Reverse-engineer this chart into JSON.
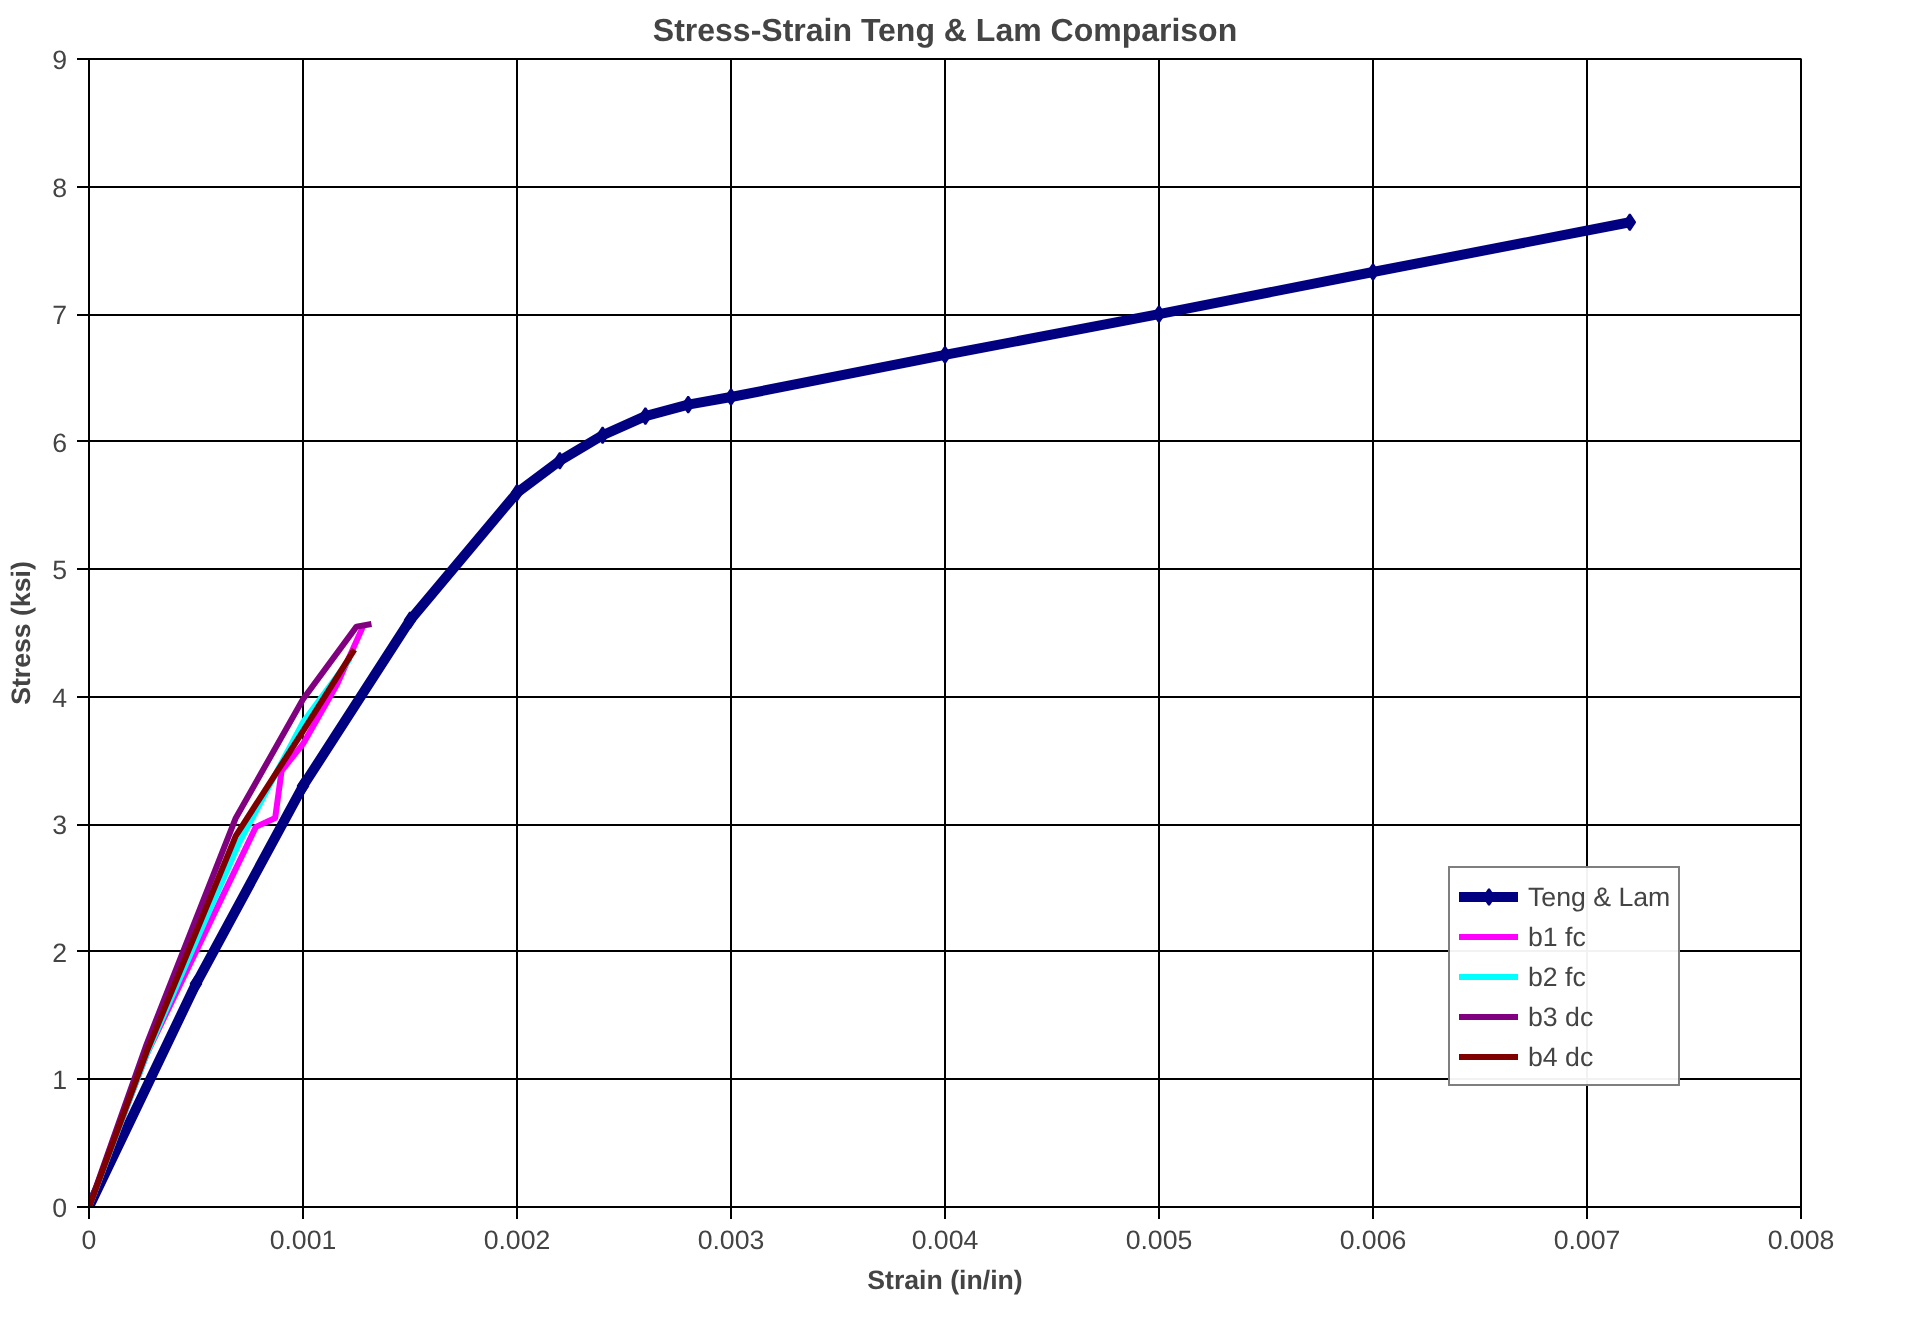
{
  "chart_data": {
    "type": "line",
    "title": "Stress-Strain Teng & Lam Comparison",
    "xlabel": "Strain (in/in)",
    "ylabel": "Stress (ksi)",
    "xlim": [
      0,
      0.008
    ],
    "ylim": [
      0,
      9
    ],
    "xticks": [
      0,
      0.001,
      0.002,
      0.003,
      0.004,
      0.005,
      0.006,
      0.007,
      0.008
    ],
    "yticks": [
      0,
      1,
      2,
      3,
      4,
      5,
      6,
      7,
      8,
      9
    ],
    "grid": true,
    "legend": "right",
    "series": [
      {
        "name": "Teng & Lam",
        "color": "#000080",
        "marker": "diamond",
        "x": [
          0,
          0.0005,
          0.001,
          0.0015,
          0.002,
          0.0022,
          0.0024,
          0.0026,
          0.0028,
          0.003,
          0.004,
          0.005,
          0.006,
          0.0072
        ],
        "values": [
          0,
          1.75,
          3.3,
          4.6,
          5.6,
          5.85,
          6.05,
          6.2,
          6.29,
          6.35,
          6.68,
          7.0,
          7.33,
          7.72
        ]
      },
      {
        "name": "b1 fc",
        "color": "#ff00ff",
        "x": [
          0,
          0.00027,
          0.00078,
          0.00087,
          0.0009,
          0.001,
          0.00116,
          0.00128
        ],
        "values": [
          0,
          1.2,
          2.98,
          3.05,
          3.42,
          3.63,
          4.1,
          4.55
        ]
      },
      {
        "name": "b2 fc",
        "color": "#00ffff",
        "x": [
          0,
          0.00027,
          0.0007,
          0.001,
          0.00122
        ],
        "values": [
          0,
          1.2,
          2.85,
          3.8,
          4.3
        ]
      },
      {
        "name": "b3 dc",
        "color": "#800080",
        "x": [
          0,
          0.00027,
          0.000686,
          0.001,
          0.00125,
          0.00132
        ],
        "values": [
          0,
          1.28,
          3.05,
          3.98,
          4.55,
          4.57
        ]
      },
      {
        "name": "b4 dc",
        "color": "#800000",
        "x": [
          0,
          0.00027,
          0.000686,
          0.001,
          0.00124
        ],
        "values": [
          0,
          1.22,
          2.91,
          3.73,
          4.37
        ]
      }
    ]
  }
}
